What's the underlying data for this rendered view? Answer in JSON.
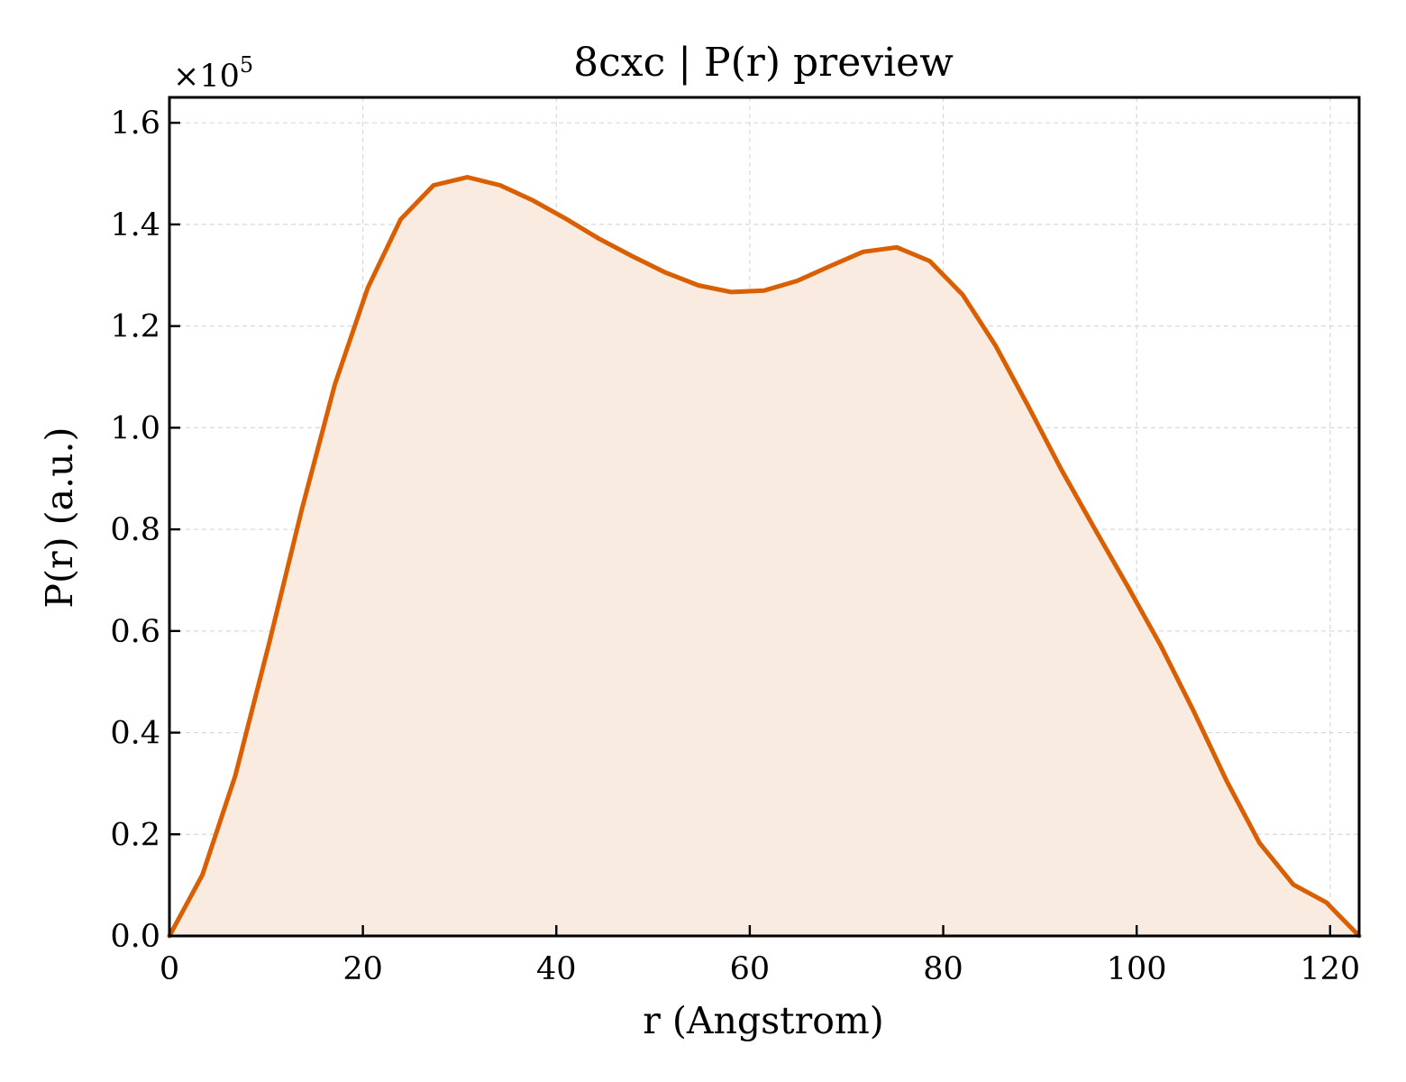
{
  "chart_data": {
    "type": "area",
    "title": "8cxc | P(r) preview",
    "xlabel": "r (Angstrom)",
    "ylabel": "P(r) (a.u.)",
    "y_multiplier": {
      "base": "×10",
      "exponent": "5"
    },
    "xlim": [
      0,
      123
    ],
    "ylim": [
      0,
      1.65
    ],
    "x_ticks": [
      0,
      20,
      40,
      60,
      80,
      100,
      120
    ],
    "x_tick_labels": [
      "0",
      "20",
      "40",
      "60",
      "80",
      "100",
      "120"
    ],
    "y_ticks": [
      0,
      0.2,
      0.4,
      0.6,
      0.8,
      1.0,
      1.2,
      1.4,
      1.6
    ],
    "y_tick_labels": [
      "0.0",
      "0.2",
      "0.4",
      "0.6",
      "0.8",
      "1.0",
      "1.2",
      "1.4",
      "1.6"
    ],
    "grid": true,
    "series": [
      {
        "color": "#d95f02",
        "fill_color": "#f9ebe0",
        "x": [
          0,
          3.4,
          6.8,
          10.3,
          13.7,
          17.1,
          20.5,
          23.9,
          27.3,
          30.8,
          34.2,
          37.6,
          41.0,
          44.4,
          47.8,
          51.2,
          54.7,
          58.1,
          61.5,
          64.9,
          68.3,
          71.7,
          75.2,
          78.6,
          82.0,
          85.4,
          88.8,
          92.2,
          95.7,
          99.1,
          102.5,
          105.9,
          109.3,
          112.7,
          116.2,
          119.6,
          123.0
        ],
        "y": [
          0.0,
          0.12,
          0.315,
          0.575,
          0.84,
          1.085,
          1.275,
          1.41,
          1.477,
          1.493,
          1.477,
          1.447,
          1.411,
          1.372,
          1.338,
          1.306,
          1.28,
          1.267,
          1.27,
          1.289,
          1.318,
          1.346,
          1.355,
          1.328,
          1.262,
          1.162,
          1.042,
          0.918,
          0.8,
          0.687,
          0.571,
          0.442,
          0.305,
          0.183,
          0.101,
          0.066,
          0.0
        ]
      }
    ]
  }
}
